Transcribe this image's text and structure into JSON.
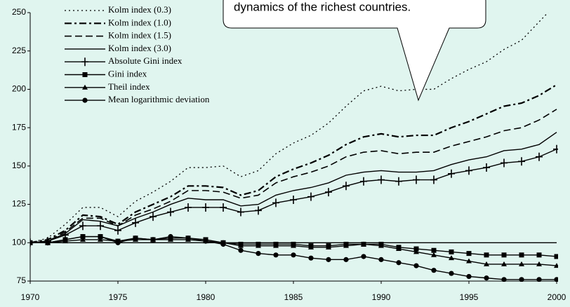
{
  "chart_data": {
    "type": "line",
    "callout": "dynamics of the richest countries.",
    "x": [
      1970,
      1971,
      1972,
      1973,
      1974,
      1975,
      1976,
      1977,
      1978,
      1979,
      1980,
      1981,
      1982,
      1983,
      1984,
      1985,
      1986,
      1987,
      1988,
      1989,
      1990,
      1991,
      1992,
      1993,
      1994,
      1995,
      1996,
      1997,
      1998,
      1999,
      2000
    ],
    "xlim": [
      1970,
      2000
    ],
    "xticks": [
      1970,
      1975,
      1980,
      1985,
      1990,
      1995,
      2000
    ],
    "ylim": [
      75,
      250
    ],
    "yticks": [
      75,
      100,
      125,
      150,
      175,
      200,
      225,
      250
    ],
    "baseline": 100,
    "series": [
      {
        "name": "Kolm index (0.3)",
        "color": "#000000",
        "line_style": "dotted",
        "marker": "none",
        "values": [
          100,
          103,
          112,
          123,
          123,
          117,
          127,
          133,
          140,
          149,
          149,
          150,
          143,
          147,
          158,
          165,
          170,
          178,
          189,
          199,
          202,
          199,
          200,
          200,
          207,
          213,
          218,
          226,
          232,
          244,
          256
        ]
      },
      {
        "name": "Kolm index (1.0)",
        "color": "#000000",
        "line_style": "dashdot",
        "marker": "none",
        "values": [
          100,
          102,
          108,
          118,
          117,
          112,
          120,
          125,
          130,
          137,
          137,
          136,
          131,
          134,
          143,
          148,
          152,
          157,
          164,
          169,
          171,
          169,
          170,
          170,
          175,
          179,
          184,
          189,
          191,
          196,
          203
        ]
      },
      {
        "name": "Kolm index (1.5)",
        "color": "#000000",
        "line_style": "dashed",
        "marker": "none",
        "values": [
          100,
          101,
          107,
          116,
          116,
          111,
          118,
          122,
          127,
          134,
          134,
          133,
          129,
          131,
          139,
          143,
          146,
          150,
          156,
          159,
          160,
          158,
          159,
          159,
          163,
          166,
          169,
          173,
          175,
          180,
          187
        ]
      },
      {
        "name": "Kolm index (3.0)",
        "color": "#000000",
        "line_style": "solid",
        "marker": "none",
        "values": [
          100,
          101,
          106,
          115,
          114,
          111,
          116,
          120,
          125,
          129,
          128,
          128,
          124,
          125,
          131,
          134,
          136,
          139,
          144,
          146,
          147,
          146,
          146,
          147,
          151,
          154,
          156,
          160,
          161,
          164,
          172
        ]
      },
      {
        "name": "Absolute Gini index",
        "color": "#000000",
        "line_style": "solid",
        "marker": "plus",
        "values": [
          100,
          101,
          105,
          111,
          111,
          108,
          113,
          117,
          120,
          123,
          123,
          123,
          120,
          121,
          126,
          128,
          130,
          133,
          137,
          140,
          141,
          140,
          141,
          141,
          145,
          147,
          149,
          152,
          153,
          156,
          161
        ]
      },
      {
        "name": "Gini index",
        "color": "#000000",
        "line_style": "solid",
        "marker": "square",
        "values": [
          100,
          100,
          102,
          104,
          104,
          101,
          103,
          102,
          103,
          103,
          102,
          100,
          99,
          99,
          99,
          99,
          98,
          98,
          99,
          99,
          99,
          97,
          96,
          95,
          94,
          93,
          92,
          92,
          92,
          92,
          91
        ]
      },
      {
        "name": "Theil index",
        "color": "#000000",
        "line_style": "solid",
        "marker": "triangle",
        "values": [
          100,
          100,
          101,
          102,
          102,
          101,
          102,
          102,
          102,
          102,
          101,
          100,
          98,
          98,
          98,
          98,
          97,
          97,
          98,
          99,
          98,
          96,
          94,
          92,
          90,
          88,
          86,
          86,
          86,
          86,
          85
        ]
      },
      {
        "name": "Mean logarithmic deviation",
        "color": "#000000",
        "line_style": "solid",
        "marker": "circle",
        "values": [
          100,
          100,
          102,
          104,
          104,
          100,
          103,
          102,
          104,
          103,
          101,
          99,
          95,
          93,
          92,
          92,
          90,
          89,
          89,
          91,
          89,
          87,
          85,
          82,
          80,
          78,
          77,
          76,
          76,
          76,
          76
        ]
      }
    ]
  }
}
